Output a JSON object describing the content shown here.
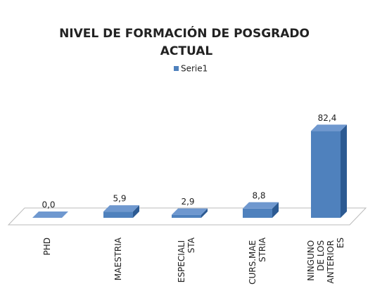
{
  "chart_data": {
    "type": "bar3d",
    "title": "NIVEL DE FORMACIÓN DE POSGRADO ACTUAL",
    "categories": [
      "PHD",
      "MAESTRIA",
      "ESPECIALI STA",
      "CURS.MAE STRIA",
      "NINGUNO DE LOS ANTERIOR ES"
    ],
    "series": [
      {
        "name": "Serie1",
        "color": "#4f81bd",
        "values": [
          0.0,
          5.9,
          2.9,
          8.8,
          82.4
        ],
        "value_labels": [
          "0,0",
          "5,9",
          "2,9",
          "8,8",
          "82,4"
        ]
      }
    ],
    "ylim": [
      0,
      90
    ],
    "legend": "top"
  }
}
